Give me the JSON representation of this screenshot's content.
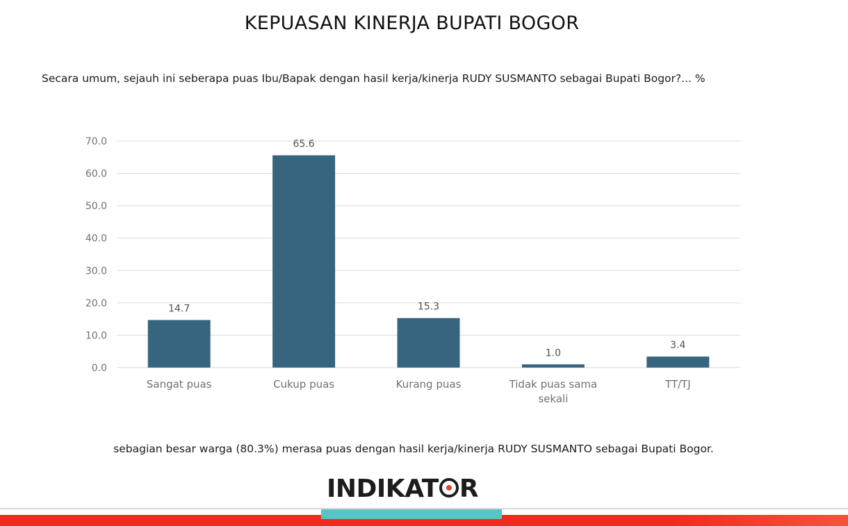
{
  "title": "KEPUASAN KINERJA BUPATI BOGOR",
  "question": "Secara umum, sejauh ini seberapa puas Ibu/Bapak dengan hasil kerja/kinerja RUDY SUSMANTO sebagai Bupati Bogor?... %",
  "conclusion": "sebagian besar warga (80.3%) merasa puas dengan hasil kerja/kinerja RUDY SUSMANTO sebagai Bupati Bogor.",
  "logo_text": "INDIKATOR",
  "colors": {
    "bar": "#376580",
    "grid": "#d9d9d9",
    "footer_red": "#f02a1c",
    "footer_teal": "#5bc3c5",
    "logo_accent": "#e8412c"
  },
  "chart_data": {
    "type": "bar",
    "categories": [
      "Sangat puas",
      "Cukup puas",
      "Kurang puas",
      "Tidak puas sama sekali",
      "TT/TJ"
    ],
    "values": [
      14.7,
      65.6,
      15.3,
      1.0,
      3.4
    ],
    "value_labels": [
      "14.7",
      "65.6",
      "15.3",
      "1.0",
      "3.4"
    ],
    "ylim": [
      0,
      70
    ],
    "yticks": [
      "0.0",
      "10.0",
      "20.0",
      "30.0",
      "40.0",
      "50.0",
      "60.0",
      "70.0"
    ],
    "grid": true
  }
}
